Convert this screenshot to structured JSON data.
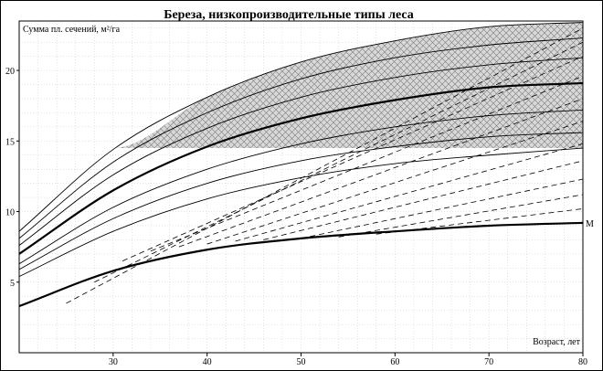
{
  "chart_data": {
    "type": "line",
    "title": "Береза, низкопроизводительные типы леса",
    "xlabel": "Возраст, лет",
    "ylabel": "Сумма пл. сечений, м²/га",
    "xlim": [
      20,
      80
    ],
    "ylim": [
      0,
      23.5
    ],
    "x_ticks": [
      30,
      40,
      50,
      60,
      70,
      80
    ],
    "y_ticks": [
      5,
      10,
      15,
      20
    ],
    "grid": true,
    "shaded_region": {
      "lower_boundary": 14.5,
      "hatch": "crosshatch"
    },
    "x": [
      20,
      30,
      40,
      50,
      60,
      70,
      80
    ],
    "series": [
      {
        "values": [
          3.3,
          5.8,
          7.3,
          8.1,
          8.6,
          9.0,
          9.2
        ],
        "style": "bold",
        "name": "M"
      },
      {
        "values": [
          7.0,
          11.5,
          14.6,
          16.6,
          17.9,
          18.8,
          19.1
        ],
        "style": "bold"
      },
      {
        "values": [
          5.4,
          8.6,
          10.9,
          12.4,
          13.4,
          14.0,
          14.5
        ],
        "style": "thin"
      },
      {
        "values": [
          5.9,
          9.5,
          12.0,
          13.6,
          14.6,
          15.3,
          15.6
        ],
        "style": "thin"
      },
      {
        "values": [
          6.3,
          10.3,
          13.0,
          14.8,
          16.0,
          16.8,
          17.2
        ],
        "style": "thin"
      },
      {
        "values": [
          7.6,
          12.6,
          15.9,
          18.1,
          19.5,
          20.4,
          20.9
        ],
        "style": "thin"
      },
      {
        "values": [
          8.1,
          13.5,
          17.0,
          19.4,
          20.9,
          21.8,
          22.3
        ],
        "style": "thin"
      },
      {
        "values": [
          8.6,
          14.4,
          18.1,
          20.6,
          22.1,
          23.1,
          23.4
        ],
        "style": "thin"
      }
    ],
    "dashed_lines": [
      {
        "x": [
          25,
          80
        ],
        "y": [
          3.5,
          23.0
        ]
      },
      {
        "x": [
          28,
          80
        ],
        "y": [
          5.0,
          22.0
        ]
      },
      {
        "x": [
          31,
          80
        ],
        "y": [
          6.5,
          21.0
        ]
      },
      {
        "x": [
          34,
          80
        ],
        "y": [
          7.2,
          19.6
        ]
      },
      {
        "x": [
          37,
          80
        ],
        "y": [
          7.5,
          18.0
        ]
      },
      {
        "x": [
          40,
          80
        ],
        "y": [
          7.7,
          16.4
        ]
      },
      {
        "x": [
          43,
          80
        ],
        "y": [
          7.9,
          14.8
        ]
      },
      {
        "x": [
          46,
          80
        ],
        "y": [
          8.0,
          13.6
        ]
      },
      {
        "x": [
          50,
          80
        ],
        "y": [
          8.1,
          12.3
        ]
      },
      {
        "x": [
          54,
          80
        ],
        "y": [
          8.2,
          11.2
        ]
      },
      {
        "x": [
          58,
          80
        ],
        "y": [
          8.4,
          10.2
        ]
      }
    ]
  }
}
